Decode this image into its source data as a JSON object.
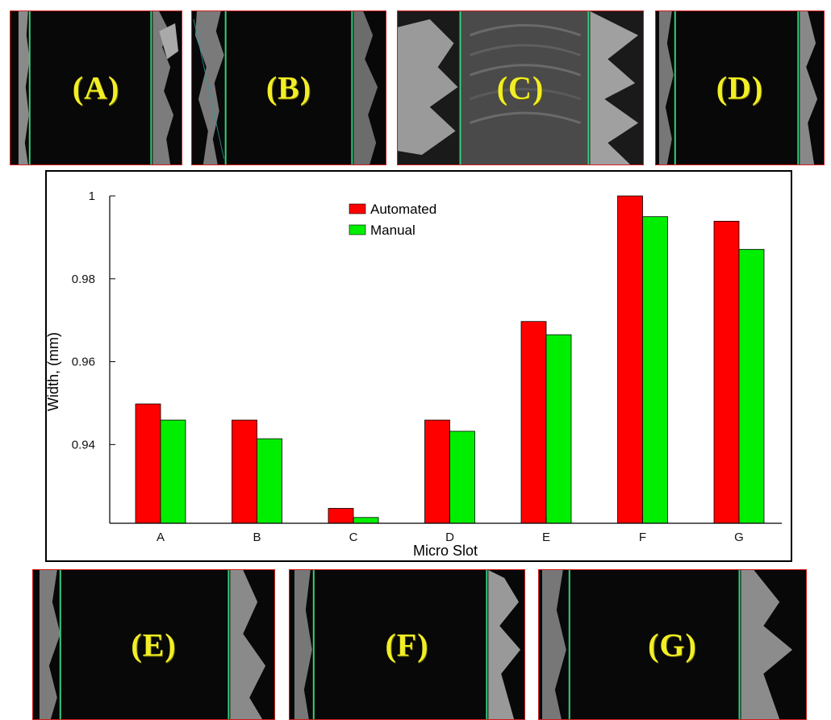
{
  "panels": [
    {
      "id": "A",
      "label": "(A)"
    },
    {
      "id": "B",
      "label": "(B)"
    },
    {
      "id": "C",
      "label": "(C)"
    },
    {
      "id": "D",
      "label": "(D)"
    },
    {
      "id": "E",
      "label": "(E)"
    },
    {
      "id": "F",
      "label": "(F)"
    },
    {
      "id": "G",
      "label": "(G)"
    }
  ],
  "chart_data": {
    "type": "bar",
    "title": "",
    "xlabel": "Micro Slot",
    "ylabel": "Width, (mm)",
    "categories": [
      "A",
      "B",
      "C",
      "D",
      "E",
      "F",
      "G"
    ],
    "ylim": [
      0.921,
      1.0
    ],
    "yticks": [
      "0.94",
      "0.96",
      "0.98",
      "1"
    ],
    "ytick_values": [
      0.94,
      0.96,
      0.98,
      1.0
    ],
    "series": [
      {
        "name": "Automated",
        "color": "#ff0000",
        "values": [
          0.9498,
          0.9459,
          0.9246,
          0.9459,
          0.9697,
          1.0,
          0.9939
        ]
      },
      {
        "name": "Manual",
        "color": "#00ee00",
        "values": [
          0.9459,
          0.9414,
          0.9224,
          0.9432,
          0.9665,
          0.995,
          0.9871
        ]
      }
    ],
    "grid": false,
    "legend": "top-center"
  }
}
